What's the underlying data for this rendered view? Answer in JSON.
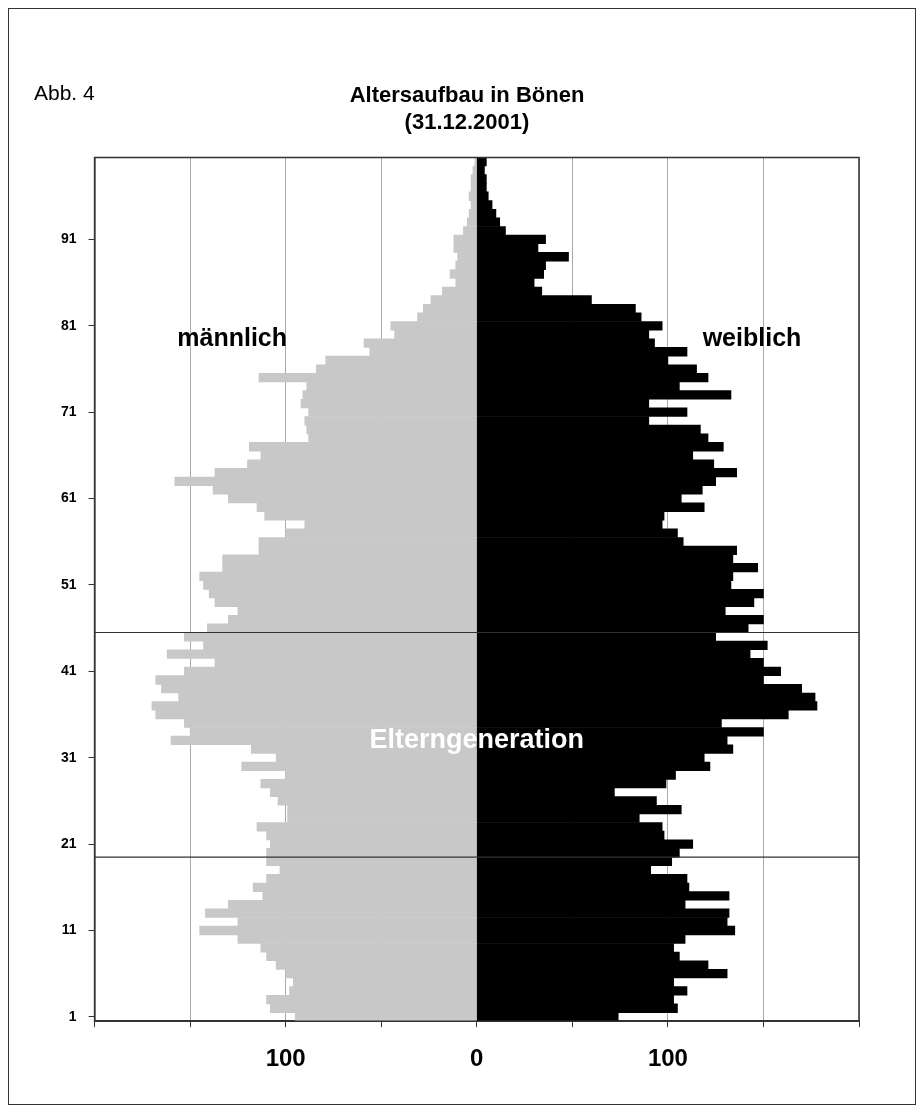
{
  "chart_data": {
    "type": "bar",
    "orientation": "horizontal",
    "stacked": true,
    "title": "Altersaufbau in Bönen",
    "subtitle": "(31.12.2001)",
    "annotations": [
      "Abb. 4",
      {
        "text": "Elterngeneration",
        "x": 0,
        "y": 33
      }
    ],
    "x": [
      1,
      2,
      3,
      4,
      5,
      6,
      7,
      8,
      9,
      10,
      11,
      12,
      13,
      14,
      15,
      16,
      17,
      18,
      19,
      20,
      21,
      22,
      23,
      24,
      25,
      26,
      27,
      28,
      29,
      30,
      31,
      32,
      33,
      34,
      35,
      36,
      37,
      38,
      39,
      40,
      41,
      42,
      43,
      44,
      45,
      46,
      47,
      48,
      49,
      50,
      51,
      52,
      53,
      54,
      55,
      56,
      57,
      58,
      59,
      60,
      61,
      62,
      63,
      64,
      65,
      66,
      67,
      68,
      69,
      70,
      71,
      72,
      73,
      74,
      75,
      76,
      77,
      78,
      79,
      80,
      81,
      82,
      83,
      84,
      85,
      86,
      87,
      88,
      89,
      90,
      91,
      92,
      93,
      94,
      95,
      96,
      97,
      98,
      99,
      100
    ],
    "series": [
      {
        "name": "männlich",
        "color": "#c8c8c8",
        "values": [
          -95,
          -108,
          -110,
          -98,
          -96,
          -100,
          -105,
          -110,
          -113,
          -125,
          -145,
          -125,
          -142,
          -130,
          -112,
          -117,
          -110,
          -103,
          -110,
          -110,
          -108,
          -110,
          -115,
          -99,
          -99,
          -104,
          -108,
          -113,
          -100,
          -123,
          -105,
          -118,
          -160,
          -150,
          -153,
          -168,
          -170,
          -156,
          -165,
          -168,
          -153,
          -137,
          -162,
          -143,
          -153,
          -141,
          -130,
          -125,
          -137,
          -140,
          -143,
          -145,
          -133,
          -133,
          -114,
          -114,
          -100,
          -90,
          -111,
          -115,
          -130,
          -138,
          -158,
          -137,
          -120,
          -113,
          -119,
          -88,
          -89,
          -90,
          -88,
          -92,
          -91,
          -89,
          -114,
          -84,
          -79,
          -56,
          -59,
          -43,
          -45,
          -31,
          -28,
          -24,
          -18,
          -11,
          -14,
          -11,
          -10,
          -12,
          -12,
          -7,
          -5,
          -4,
          -3,
          -4,
          -3,
          -3,
          -2,
          -1
        ]
      },
      {
        "name": "weiblich",
        "color": "#000000",
        "values": [
          74,
          105,
          103,
          110,
          103,
          131,
          121,
          106,
          103,
          109,
          135,
          131,
          132,
          109,
          132,
          111,
          110,
          91,
          102,
          106,
          113,
          98,
          97,
          85,
          107,
          94,
          72,
          99,
          104,
          122,
          119,
          134,
          131,
          150,
          128,
          163,
          178,
          177,
          170,
          150,
          159,
          150,
          143,
          152,
          125,
          142,
          150,
          130,
          145,
          150,
          133,
          134,
          147,
          134,
          136,
          108,
          105,
          97,
          98,
          119,
          107,
          118,
          125,
          136,
          124,
          113,
          129,
          121,
          117,
          90,
          110,
          90,
          133,
          106,
          121,
          115,
          100,
          110,
          93,
          90,
          97,
          86,
          83,
          60,
          34,
          30,
          35,
          36,
          48,
          32,
          36,
          15,
          12,
          10,
          8,
          6,
          5,
          5,
          4,
          5
        ]
      }
    ],
    "xlim": [
      -200,
      200
    ],
    "xticks": [
      {
        "value": -200,
        "label": null
      },
      {
        "value": -150,
        "label": null
      },
      {
        "value": -100,
        "label": "100"
      },
      {
        "value": -50,
        "label": null
      },
      {
        "value": 0,
        "label": "0"
      },
      {
        "value": 50,
        "label": null
      },
      {
        "value": 100,
        "label": "100"
      },
      {
        "value": 150,
        "label": null
      },
      {
        "value": 200,
        "label": null
      }
    ],
    "ylim": [
      0.5,
      100.5
    ],
    "yticks": [
      1,
      11,
      21,
      31,
      41,
      51,
      61,
      71,
      81,
      91
    ],
    "ref_lines": [
      {
        "axis": "y",
        "value": 19.5,
        "color": "#333333"
      },
      {
        "axis": "y",
        "value": 45.5,
        "color": "#333333"
      }
    ],
    "grid": "x",
    "legend": false
  }
}
